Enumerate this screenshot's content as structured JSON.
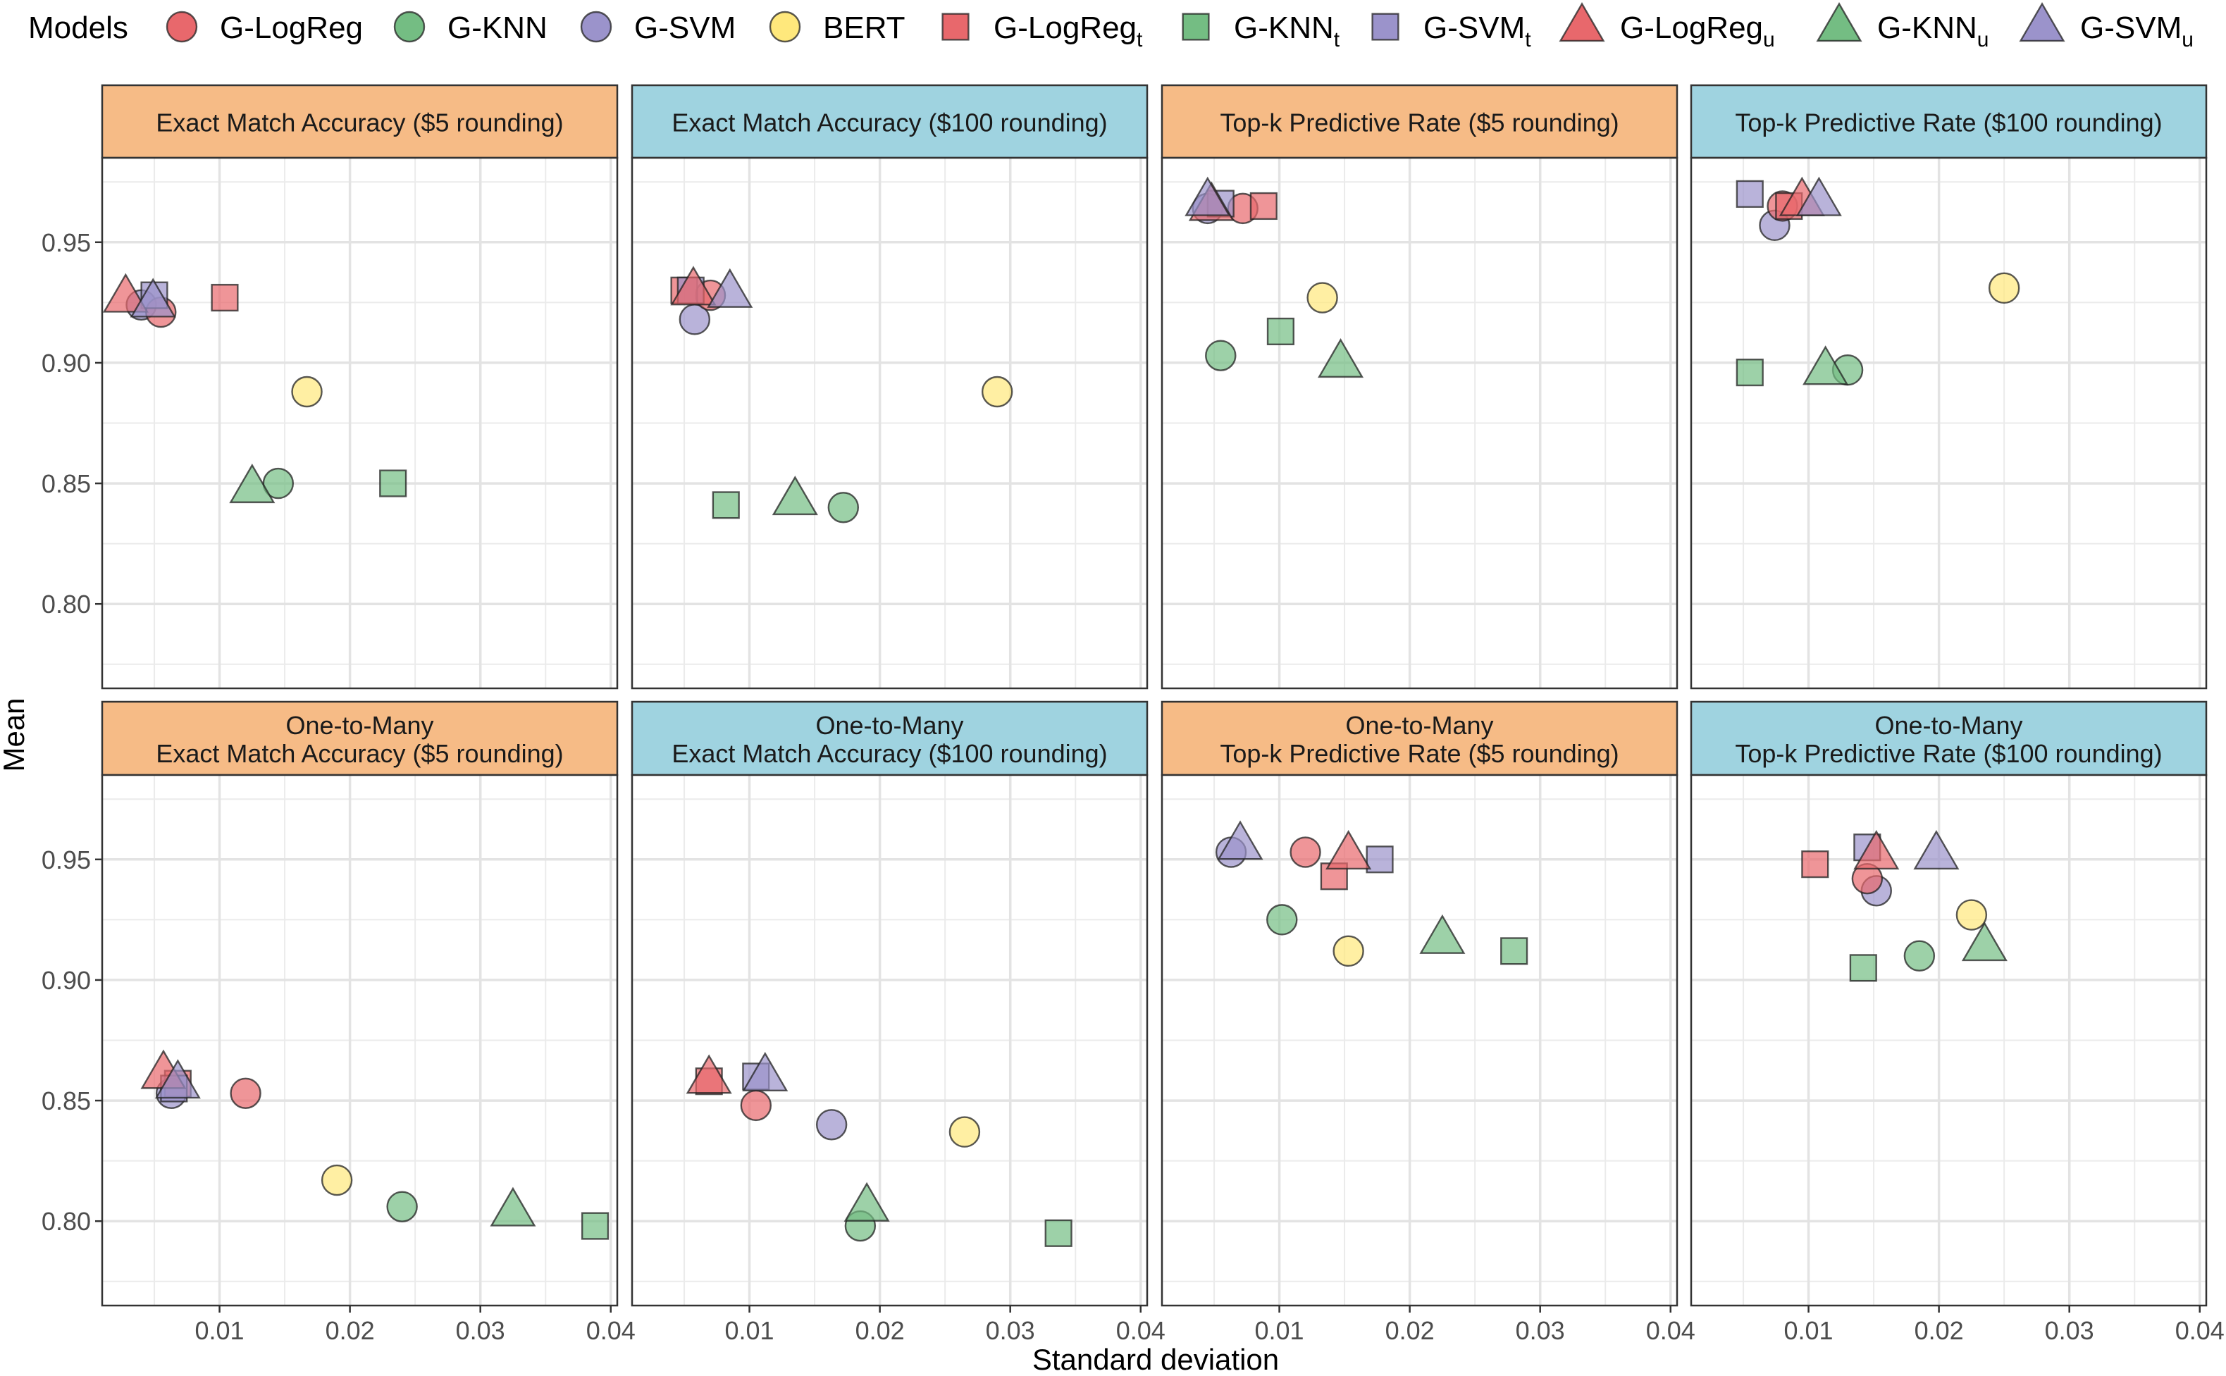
{
  "chart_data": {
    "type": "scatter",
    "xlabel": "Standard deviation",
    "ylabel": "Mean",
    "xlim": [
      0.001,
      0.0405
    ],
    "ylim": [
      0.765,
      0.985
    ],
    "x_ticks": [
      0.01,
      0.02,
      0.03,
      0.04
    ],
    "x_tick_labels": [
      "0.01",
      "0.02",
      "0.03",
      "0.04"
    ],
    "y_ticks": [
      0.8,
      0.85,
      0.9,
      0.95
    ],
    "y_tick_labels": [
      "0.80",
      "0.85",
      "0.90",
      "0.95"
    ],
    "grid": true,
    "legend": {
      "title": "Models",
      "position": "top",
      "entries": [
        {
          "key": "G-LogReg",
          "label": "G-LogReg",
          "sub": "",
          "shape": "circle",
          "color": "#E41A1C"
        },
        {
          "key": "G-KNN",
          "label": "G-KNN",
          "sub": "",
          "shape": "circle",
          "color": "#4DAF4A"
        },
        {
          "key": "G-SVM",
          "label": "G-SVM",
          "sub": "",
          "shape": "circle",
          "color": "#7B6FBF"
        },
        {
          "key": "BERT",
          "label": "BERT",
          "sub": "",
          "shape": "circle",
          "color": "#FFE55C"
        },
        {
          "key": "G-LogReg_t",
          "label": "G-LogReg",
          "sub": "t",
          "shape": "square",
          "color": "#E41A1C"
        },
        {
          "key": "G-KNN_t",
          "label": "G-KNN",
          "sub": "t",
          "shape": "square",
          "color": "#4DAF4A"
        },
        {
          "key": "G-SVM_t",
          "label": "G-SVM",
          "sub": "t",
          "shape": "square",
          "color": "#7B6FBF"
        },
        {
          "key": "G-LogReg_u",
          "label": "G-LogReg",
          "sub": "u",
          "shape": "triangle",
          "color": "#E41A1C"
        },
        {
          "key": "G-KNN_u",
          "label": "G-KNN",
          "sub": "u",
          "shape": "triangle",
          "color": "#4DAF4A"
        },
        {
          "key": "G-SVM_u",
          "label": "G-SVM",
          "sub": "u",
          "shape": "triangle",
          "color": "#7B6FBF"
        }
      ]
    },
    "strip_colors": {
      "five": "#F6BB86",
      "hundred": "#9FD3E0"
    },
    "panels": [
      {
        "title": [
          "Exact Match Accuracy ($5 rounding)"
        ],
        "strip": "five",
        "points": [
          {
            "model": "G-LogReg",
            "x": 0.0055,
            "y": 0.921
          },
          {
            "model": "G-KNN",
            "x": 0.0145,
            "y": 0.85
          },
          {
            "model": "G-SVM",
            "x": 0.004,
            "y": 0.924
          },
          {
            "model": "BERT",
            "x": 0.0167,
            "y": 0.888
          },
          {
            "model": "G-LogReg_t",
            "x": 0.0104,
            "y": 0.927
          },
          {
            "model": "G-KNN_t",
            "x": 0.0233,
            "y": 0.85
          },
          {
            "model": "G-SVM_t",
            "x": 0.005,
            "y": 0.928
          },
          {
            "model": "G-LogReg_u",
            "x": 0.0028,
            "y": 0.927
          },
          {
            "model": "G-KNN_u",
            "x": 0.0125,
            "y": 0.848
          },
          {
            "model": "G-SVM_u",
            "x": 0.0049,
            "y": 0.925
          }
        ]
      },
      {
        "title": [
          "Exact Match Accuracy ($100 rounding)"
        ],
        "strip": "hundred",
        "points": [
          {
            "model": "G-LogReg",
            "x": 0.007,
            "y": 0.928
          },
          {
            "model": "G-KNN",
            "x": 0.0172,
            "y": 0.84
          },
          {
            "model": "G-SVM",
            "x": 0.0058,
            "y": 0.918
          },
          {
            "model": "BERT",
            "x": 0.029,
            "y": 0.888
          },
          {
            "model": "G-LogReg_t",
            "x": 0.005,
            "y": 0.93
          },
          {
            "model": "G-KNN_t",
            "x": 0.0082,
            "y": 0.841
          },
          {
            "model": "G-SVM_t",
            "x": 0.0055,
            "y": 0.93
          },
          {
            "model": "G-LogReg_u",
            "x": 0.0057,
            "y": 0.93
          },
          {
            "model": "G-KNN_u",
            "x": 0.0135,
            "y": 0.843
          },
          {
            "model": "G-SVM_u",
            "x": 0.0085,
            "y": 0.929
          }
        ]
      },
      {
        "title": [
          "Top-k Predictive Rate ($5 rounding)"
        ],
        "strip": "five",
        "points": [
          {
            "model": "G-LogReg",
            "x": 0.0072,
            "y": 0.964
          },
          {
            "model": "G-KNN",
            "x": 0.0055,
            "y": 0.903
          },
          {
            "model": "G-SVM",
            "x": 0.0045,
            "y": 0.964
          },
          {
            "model": "BERT",
            "x": 0.0133,
            "y": 0.927
          },
          {
            "model": "G-LogReg_t",
            "x": 0.0088,
            "y": 0.965
          },
          {
            "model": "G-KNN_t",
            "x": 0.0101,
            "y": 0.913
          },
          {
            "model": "G-SVM_t",
            "x": 0.0055,
            "y": 0.966
          },
          {
            "model": "G-LogReg_u",
            "x": 0.0048,
            "y": 0.965
          },
          {
            "model": "G-KNN_u",
            "x": 0.0147,
            "y": 0.9
          },
          {
            "model": "G-SVM_u",
            "x": 0.0045,
            "y": 0.967
          }
        ]
      },
      {
        "title": [
          "Top-k Predictive Rate ($100 rounding)"
        ],
        "strip": "hundred",
        "points": [
          {
            "model": "G-LogReg",
            "x": 0.008,
            "y": 0.965
          },
          {
            "model": "G-KNN",
            "x": 0.013,
            "y": 0.897
          },
          {
            "model": "G-SVM",
            "x": 0.0074,
            "y": 0.957
          },
          {
            "model": "BERT",
            "x": 0.025,
            "y": 0.931
          },
          {
            "model": "G-LogReg_t",
            "x": 0.0085,
            "y": 0.965
          },
          {
            "model": "G-KNN_t",
            "x": 0.0055,
            "y": 0.896
          },
          {
            "model": "G-SVM_t",
            "x": 0.0055,
            "y": 0.97
          },
          {
            "model": "G-LogReg_u",
            "x": 0.0095,
            "y": 0.967
          },
          {
            "model": "G-KNN_u",
            "x": 0.0113,
            "y": 0.897
          },
          {
            "model": "G-SVM_u",
            "x": 0.0108,
            "y": 0.967
          }
        ]
      },
      {
        "title": [
          "One-to-Many",
          "Exact Match Accuracy ($5 rounding)"
        ],
        "strip": "five",
        "points": [
          {
            "model": "G-LogReg",
            "x": 0.012,
            "y": 0.853
          },
          {
            "model": "G-KNN",
            "x": 0.024,
            "y": 0.806
          },
          {
            "model": "G-SVM",
            "x": 0.0063,
            "y": 0.853
          },
          {
            "model": "BERT",
            "x": 0.019,
            "y": 0.817
          },
          {
            "model": "G-LogReg_t",
            "x": 0.0068,
            "y": 0.857
          },
          {
            "model": "G-KNN_t",
            "x": 0.0388,
            "y": 0.798
          },
          {
            "model": "G-SVM_t",
            "x": 0.0065,
            "y": 0.855
          },
          {
            "model": "G-LogReg_u",
            "x": 0.0057,
            "y": 0.861
          },
          {
            "model": "G-KNN_u",
            "x": 0.0325,
            "y": 0.804
          },
          {
            "model": "G-SVM_u",
            "x": 0.0068,
            "y": 0.857
          }
        ]
      },
      {
        "title": [
          "One-to-Many",
          "Exact Match Accuracy ($100 rounding)"
        ],
        "strip": "hundred",
        "points": [
          {
            "model": "G-LogReg",
            "x": 0.0105,
            "y": 0.848
          },
          {
            "model": "G-KNN",
            "x": 0.0185,
            "y": 0.798
          },
          {
            "model": "G-SVM",
            "x": 0.0163,
            "y": 0.84
          },
          {
            "model": "BERT",
            "x": 0.0265,
            "y": 0.837
          },
          {
            "model": "G-LogReg_t",
            "x": 0.0069,
            "y": 0.858
          },
          {
            "model": "G-KNN_t",
            "x": 0.0337,
            "y": 0.795
          },
          {
            "model": "G-SVM_t",
            "x": 0.0105,
            "y": 0.86
          },
          {
            "model": "G-LogReg_u",
            "x": 0.0069,
            "y": 0.859
          },
          {
            "model": "G-KNN_u",
            "x": 0.019,
            "y": 0.806
          },
          {
            "model": "G-SVM_u",
            "x": 0.0112,
            "y": 0.86
          }
        ]
      },
      {
        "title": [
          "One-to-Many",
          "Top-k Predictive Rate ($5 rounding)"
        ],
        "strip": "five",
        "points": [
          {
            "model": "G-LogReg",
            "x": 0.012,
            "y": 0.953
          },
          {
            "model": "G-KNN",
            "x": 0.0102,
            "y": 0.925
          },
          {
            "model": "G-SVM",
            "x": 0.0063,
            "y": 0.953
          },
          {
            "model": "BERT",
            "x": 0.0153,
            "y": 0.912
          },
          {
            "model": "G-LogReg_t",
            "x": 0.0142,
            "y": 0.943
          },
          {
            "model": "G-KNN_t",
            "x": 0.028,
            "y": 0.912
          },
          {
            "model": "G-SVM_t",
            "x": 0.0177,
            "y": 0.95
          },
          {
            "model": "G-LogReg_u",
            "x": 0.0153,
            "y": 0.952
          },
          {
            "model": "G-KNN_u",
            "x": 0.0225,
            "y": 0.917
          },
          {
            "model": "G-SVM_u",
            "x": 0.007,
            "y": 0.956
          }
        ]
      },
      {
        "title": [
          "One-to-Many",
          "Top-k Predictive Rate ($100 rounding)"
        ],
        "strip": "hundred",
        "points": [
          {
            "model": "G-LogReg",
            "x": 0.0145,
            "y": 0.942
          },
          {
            "model": "G-KNN",
            "x": 0.0185,
            "y": 0.91
          },
          {
            "model": "G-SVM",
            "x": 0.0152,
            "y": 0.937
          },
          {
            "model": "BERT",
            "x": 0.0225,
            "y": 0.927
          },
          {
            "model": "G-LogReg_t",
            "x": 0.0105,
            "y": 0.948
          },
          {
            "model": "G-KNN_t",
            "x": 0.0142,
            "y": 0.905
          },
          {
            "model": "G-SVM_t",
            "x": 0.0145,
            "y": 0.955
          },
          {
            "model": "G-LogReg_u",
            "x": 0.0152,
            "y": 0.952
          },
          {
            "model": "G-KNN_u",
            "x": 0.0235,
            "y": 0.914
          },
          {
            "model": "G-SVM_u",
            "x": 0.0198,
            "y": 0.952
          }
        ]
      }
    ]
  }
}
